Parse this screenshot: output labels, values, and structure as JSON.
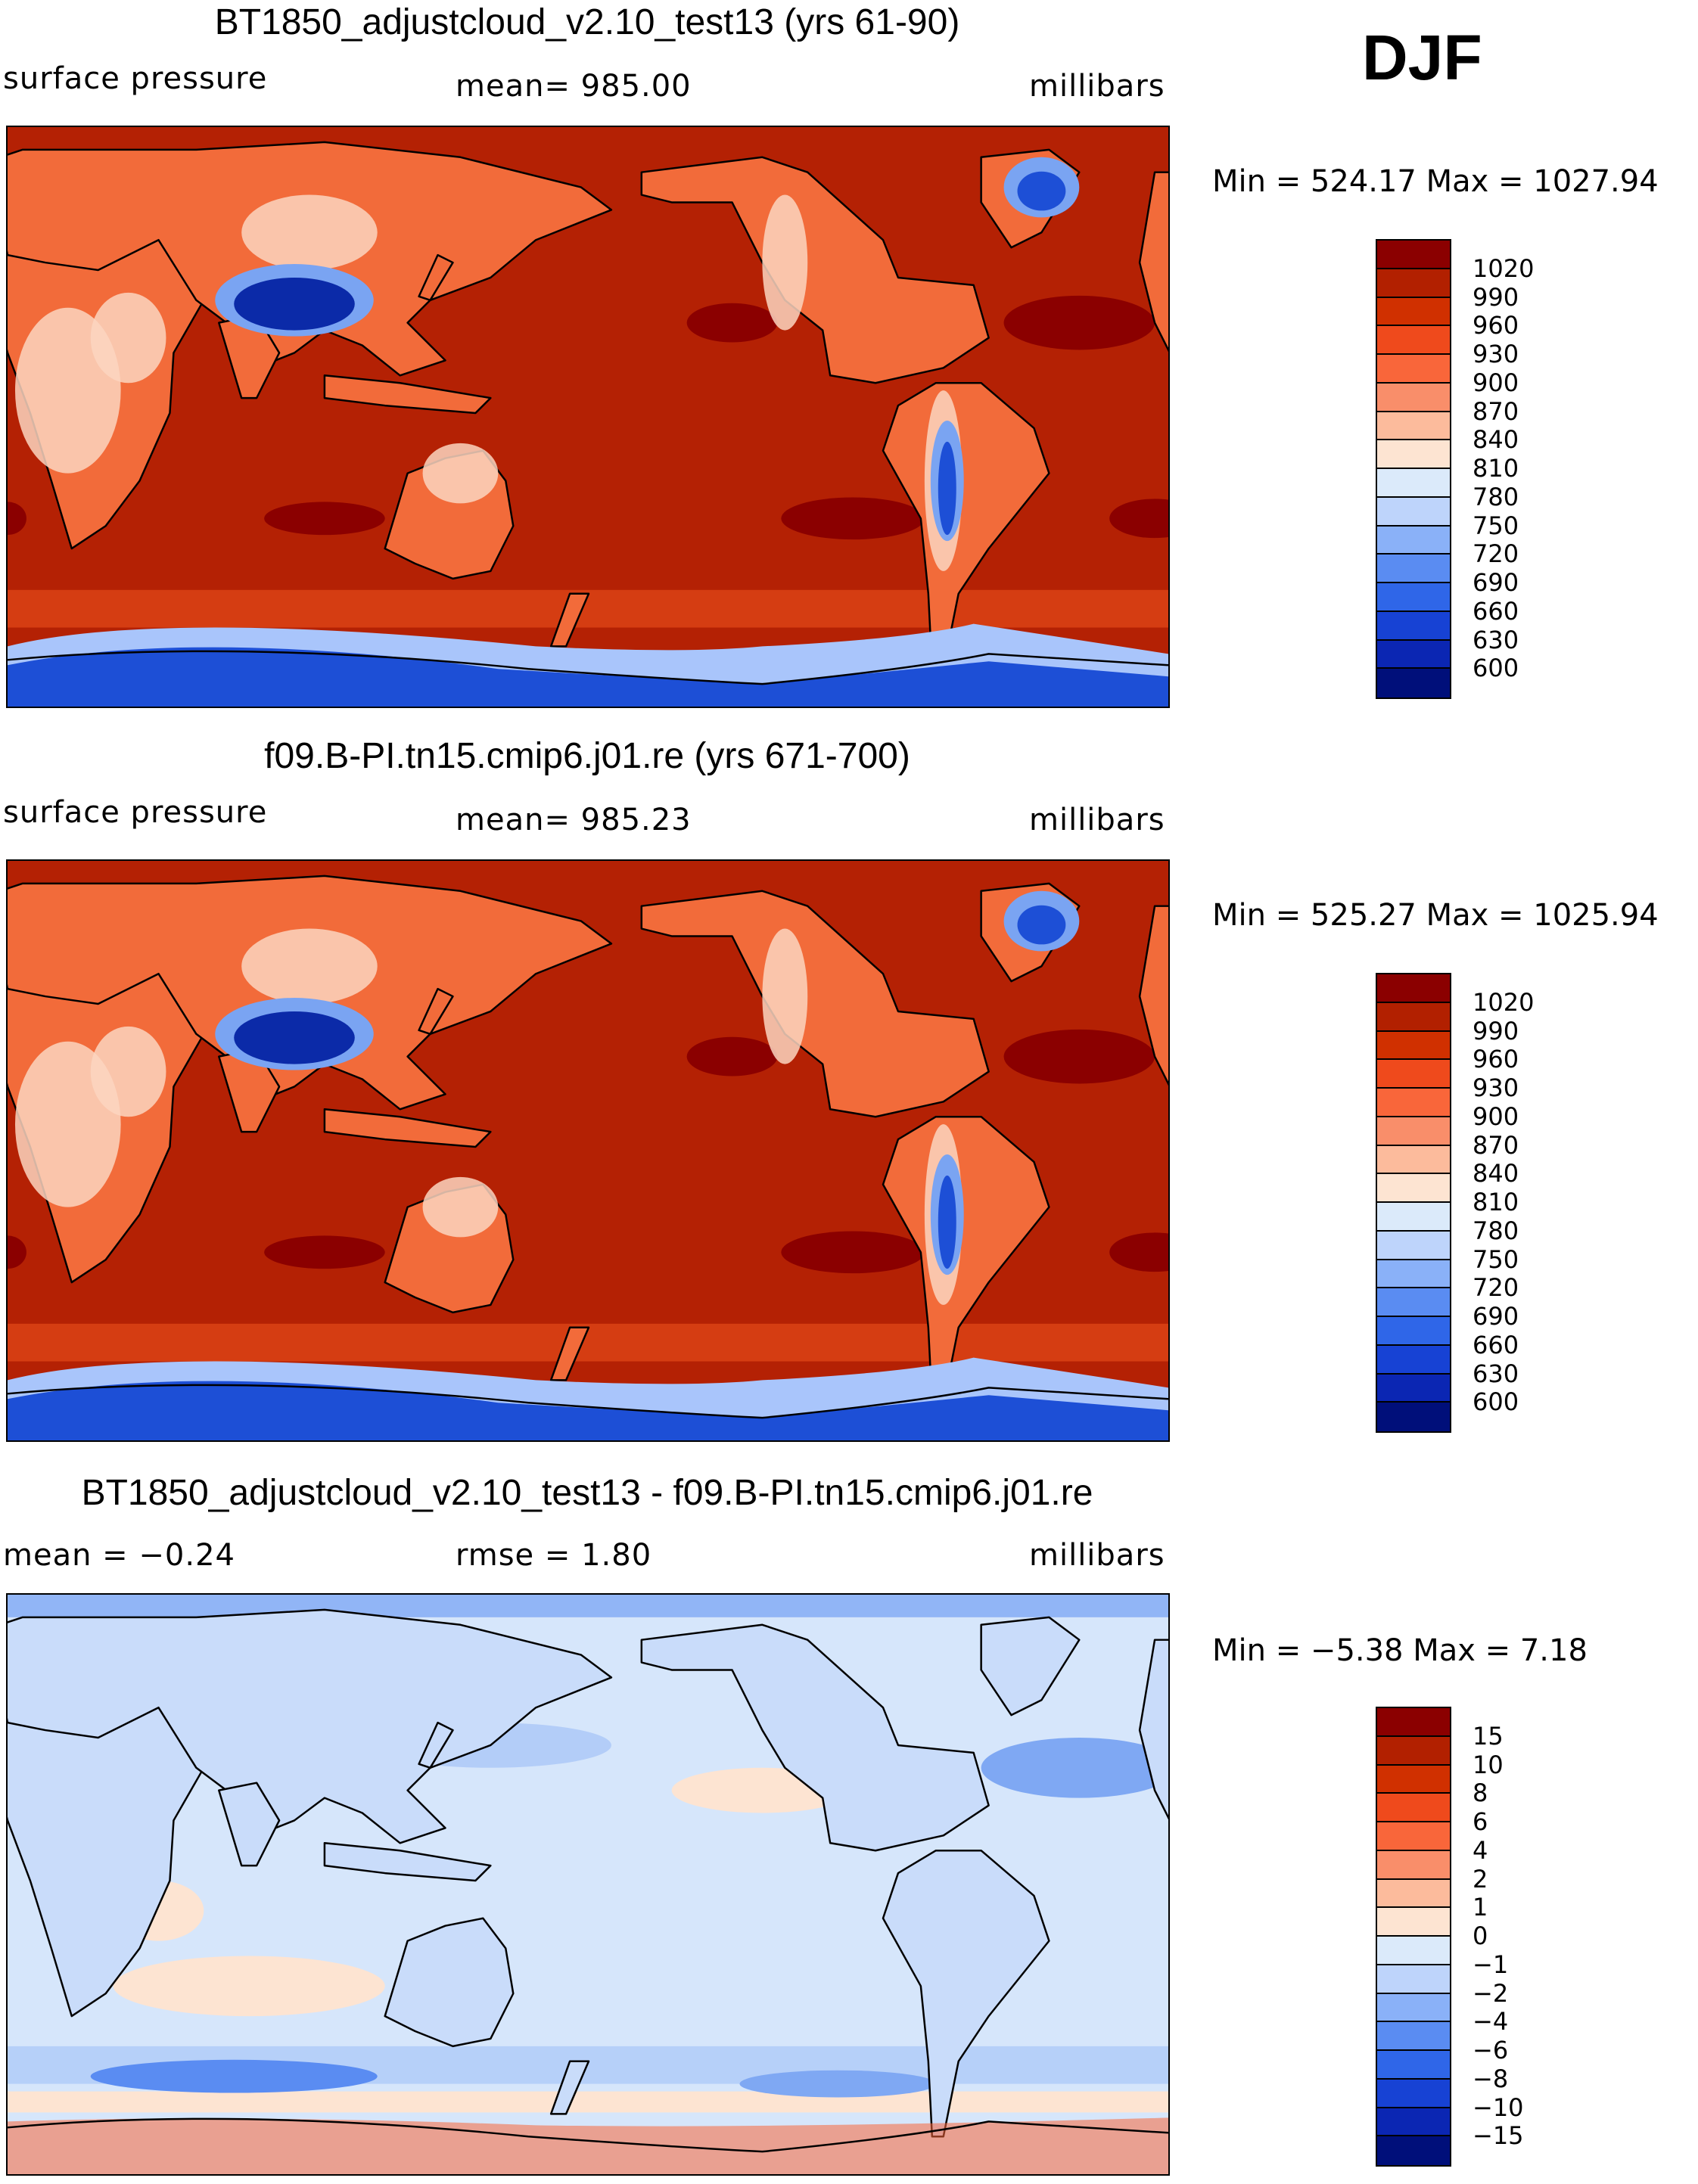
{
  "season": "DJF",
  "panels": [
    {
      "title": "BT1850_adjustcloud_v2.10_test13 (yrs 61-90)",
      "left_label": "surface pressure",
      "center_label": "mean= 985.00",
      "right_label": "millibars",
      "minmax": "Min = 524.17 Max = 1027.94",
      "colorbar_labels": [
        "1020",
        "990",
        "960",
        "930",
        "900",
        "870",
        "840",
        "810",
        "780",
        "750",
        "720",
        "690",
        "660",
        "630",
        "600"
      ],
      "colorbar_colors": [
        "#8b0000",
        "#b22000",
        "#d03000",
        "#ef4a1c",
        "#f9663a",
        "#f98e6a",
        "#fcbb9c",
        "#fde4d2",
        "#dbeafa",
        "#bed4fb",
        "#8ab1f8",
        "#5a8cf2",
        "#2f66e8",
        "#1742d4",
        "#0b26b3",
        "#000f7a"
      ],
      "map_palette": {
        "ocean": "#b42104",
        "land_hi": "#d63a12",
        "land_mid": "#f26b3a",
        "land_lo": "#fbd5bf",
        "plateau": "#0b2aa8",
        "plateau_edge": "#7aa4f2",
        "antarctica": "#1d4fd6",
        "antarctica_edge": "#a9c5fb",
        "high_band": "#8b0000",
        "southern_band": "#d84014"
      }
    },
    {
      "title": "f09.B-PI.tn15.cmip6.j01.re (yrs 671-700)",
      "left_label": "surface pressure",
      "center_label": "mean= 985.23",
      "right_label": "millibars",
      "minmax": "Min = 525.27 Max = 1025.94",
      "colorbar_labels": [
        "1020",
        "990",
        "960",
        "930",
        "900",
        "870",
        "840",
        "810",
        "780",
        "750",
        "720",
        "690",
        "660",
        "630",
        "600"
      ],
      "colorbar_colors": [
        "#8b0000",
        "#b22000",
        "#d03000",
        "#ef4a1c",
        "#f9663a",
        "#f98e6a",
        "#fcbb9c",
        "#fde4d2",
        "#dbeafa",
        "#bed4fb",
        "#8ab1f8",
        "#5a8cf2",
        "#2f66e8",
        "#1742d4",
        "#0b26b3",
        "#000f7a"
      ],
      "map_palette": {
        "ocean": "#b42104",
        "land_hi": "#d63a12",
        "land_mid": "#f26b3a",
        "land_lo": "#fbd5bf",
        "plateau": "#0b2aa8",
        "plateau_edge": "#7aa4f2",
        "antarctica": "#1d4fd6",
        "antarctica_edge": "#a9c5fb",
        "high_band": "#8b0000",
        "southern_band": "#d84014"
      }
    },
    {
      "title": "BT1850_adjustcloud_v2.10_test13 - f09.B-PI.tn15.cmip6.j01.re",
      "left_label": "mean =   −0.24",
      "center_label": "rmse =    1.80",
      "right_label": "millibars",
      "minmax": "Min =   −5.38 Max =     7.18",
      "colorbar_labels": [
        "15",
        "10",
        "8",
        "6",
        "4",
        "2",
        "1",
        "0",
        "−1",
        "−2",
        "−4",
        "−6",
        "−8",
        "−10",
        "−15"
      ],
      "colorbar_colors": [
        "#8b0000",
        "#b22000",
        "#d03000",
        "#ef4a1c",
        "#f9663a",
        "#f98e6a",
        "#fcbb9c",
        "#fde4d2",
        "#dbeafa",
        "#bed4fb",
        "#8ab1f8",
        "#5a8cf2",
        "#2f66e8",
        "#1742d4",
        "#0b26b3",
        "#000f7a"
      ],
      "map_palette": {
        "ocean": "#d6e6fb",
        "land_hi": "#c9dcfa",
        "land_mid": "#b3cdf8",
        "land_lo": "#fde4d2",
        "plateau": "#8ab1f8",
        "plateau_edge": "#bed4fb",
        "antarctica": "#f9663a",
        "antarctica_edge": "#f98e6a",
        "high_band": "#7fa8f3",
        "southern_band": "#5a8cf2"
      }
    }
  ]
}
